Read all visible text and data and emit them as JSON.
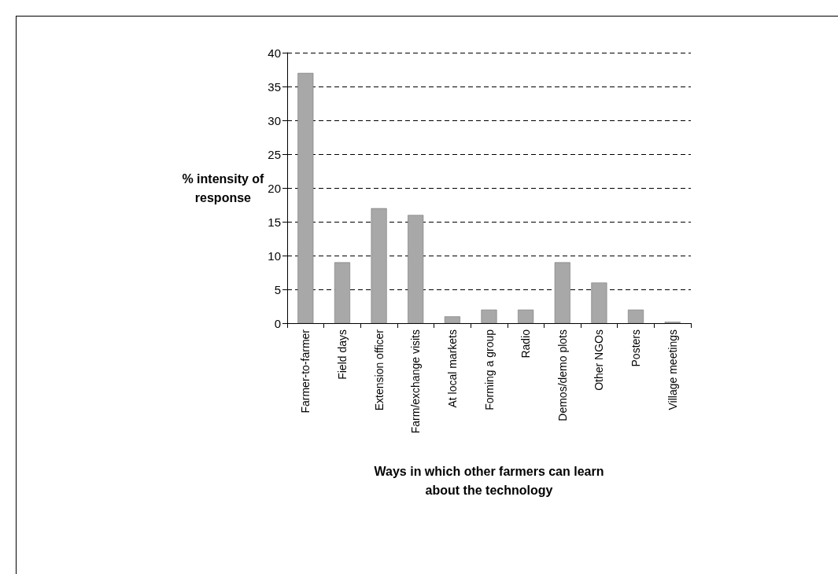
{
  "chart_data": {
    "type": "bar",
    "xlabel": "Ways in which other farmers can learn about the technology",
    "ylabel": "% intensity of response",
    "categories": [
      "Farmer-to-farmer",
      "Field days",
      "Extension officer",
      "Farm/exchange visits",
      "At local markets",
      "Forming a group",
      "Radio",
      "Demos/demo plots",
      "Other NGOs",
      "Posters",
      "Village meetings"
    ],
    "values": [
      37,
      9,
      17,
      16,
      1,
      2,
      2,
      9,
      6,
      2,
      0.2
    ],
    "color": "#a8a8a8",
    "ylim": [
      0,
      40
    ],
    "yticks": [
      0,
      5,
      10,
      15,
      20,
      25,
      30,
      35,
      40
    ],
    "grid": "y"
  }
}
